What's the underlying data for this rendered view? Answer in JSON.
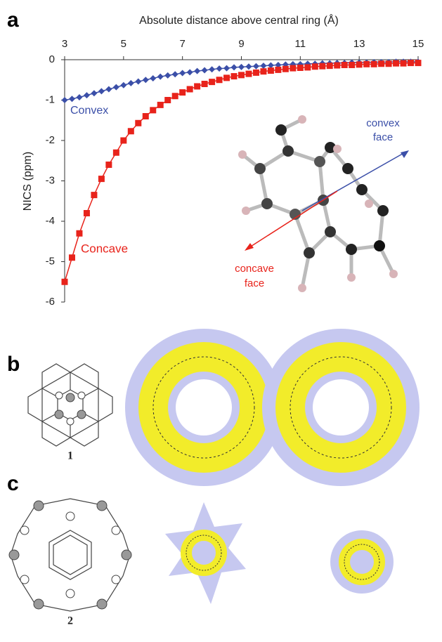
{
  "figure": {
    "panel_labels": [
      "a",
      "b",
      "c"
    ],
    "compound_labels": [
      "1",
      "2"
    ],
    "convex_face": [
      "convex",
      "face"
    ],
    "concave_face": [
      "concave",
      "face"
    ]
  },
  "chart_data": {
    "type": "line",
    "title": "Absolute distance above central ring (Å)",
    "y_label": "NICS (ppm)",
    "x": [
      3,
      3.25,
      3.5,
      3.75,
      4,
      4.25,
      4.5,
      4.75,
      5,
      5.25,
      5.5,
      5.75,
      6,
      6.25,
      6.5,
      6.75,
      7,
      7.25,
      7.5,
      7.75,
      8,
      8.25,
      8.5,
      8.75,
      9,
      9.25,
      9.5,
      9.75,
      10,
      10.25,
      10.5,
      10.75,
      11,
      11.25,
      11.5,
      11.75,
      12,
      12.25,
      12.5,
      12.75,
      13,
      13.25,
      13.5,
      13.75,
      14,
      14.25,
      14.5,
      14.75,
      15
    ],
    "series": [
      {
        "name": "Convex",
        "color": "#3b4fa8",
        "marker": "diamond",
        "values": [
          -1.0,
          -0.97,
          -0.93,
          -0.88,
          -0.83,
          -0.78,
          -0.73,
          -0.68,
          -0.63,
          -0.58,
          -0.54,
          -0.5,
          -0.46,
          -0.42,
          -0.39,
          -0.36,
          -0.33,
          -0.31,
          -0.28,
          -0.26,
          -0.24,
          -0.22,
          -0.21,
          -0.19,
          -0.18,
          -0.17,
          -0.16,
          -0.15,
          -0.14,
          -0.13,
          -0.12,
          -0.11,
          -0.11,
          -0.1,
          -0.1,
          -0.09,
          -0.09,
          -0.08,
          -0.08,
          -0.07,
          -0.07,
          -0.07,
          -0.06,
          -0.06,
          -0.06,
          -0.05,
          -0.05,
          -0.05,
          -0.05
        ]
      },
      {
        "name": "Concave",
        "color": "#e8231b",
        "marker": "square",
        "values": [
          -5.5,
          -4.9,
          -4.3,
          -3.8,
          -3.35,
          -2.95,
          -2.6,
          -2.3,
          -2.0,
          -1.77,
          -1.57,
          -1.4,
          -1.25,
          -1.12,
          -1.0,
          -0.9,
          -0.81,
          -0.73,
          -0.66,
          -0.6,
          -0.55,
          -0.5,
          -0.45,
          -0.41,
          -0.38,
          -0.35,
          -0.32,
          -0.29,
          -0.27,
          -0.25,
          -0.23,
          -0.21,
          -0.2,
          -0.19,
          -0.17,
          -0.16,
          -0.15,
          -0.14,
          -0.13,
          -0.13,
          -0.12,
          -0.11,
          -0.11,
          -0.1,
          -0.1,
          -0.09,
          -0.09,
          -0.08,
          -0.08
        ]
      }
    ],
    "xlim": [
      3,
      15
    ],
    "xticks": [
      3,
      5,
      7,
      9,
      11,
      13,
      15
    ],
    "ylim": [
      -6,
      0
    ],
    "yticks": [
      0,
      -1,
      -2,
      -3,
      -4,
      -5,
      -6
    ]
  }
}
